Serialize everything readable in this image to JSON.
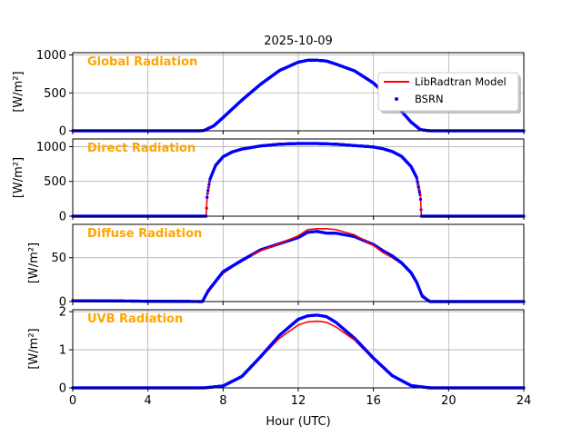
{
  "figure": {
    "title": "2025-10-09",
    "xlabel": "Hour (UTC)"
  },
  "colors": {
    "model": "#ff0000",
    "bsrn": "#0000ff",
    "panel_title": "#ffa500",
    "grid": "#b0b0b0"
  },
  "legend": {
    "location": "upper-right of first panel",
    "entries": [
      {
        "label": "LibRadtran Model",
        "style": "line",
        "color": "#ff0000"
      },
      {
        "label": "BSRN",
        "style": "dot",
        "color": "#0000ff"
      }
    ]
  },
  "chart_data": [
    {
      "type": "line",
      "title": "Global Radiation",
      "ylabel": "[W/m²]",
      "xlim": [
        0,
        24
      ],
      "ylim": [
        0,
        1030
      ],
      "xticks": [
        0,
        4,
        8,
        12,
        16,
        20,
        24
      ],
      "yticks": [
        0,
        500,
        1000
      ],
      "grid": true,
      "x": [
        0,
        6.8,
        7.0,
        7.5,
        8,
        9,
        10,
        11,
        12,
        12.5,
        13,
        13.5,
        14,
        15,
        16,
        17,
        17.5,
        18,
        18.5,
        19,
        24
      ],
      "series": [
        {
          "name": "LibRadtran Model",
          "values": [
            0,
            0,
            5,
            60,
            170,
            400,
            610,
            790,
            900,
            925,
            930,
            920,
            880,
            790,
            630,
            400,
            260,
            120,
            15,
            0,
            0
          ]
        },
        {
          "name": "BSRN",
          "values": [
            0,
            0,
            6,
            65,
            175,
            405,
            615,
            795,
            905,
            930,
            930,
            920,
            880,
            790,
            630,
            400,
            255,
            115,
            15,
            0,
            0
          ]
        }
      ]
    },
    {
      "type": "line",
      "title": "Direct Radiation",
      "ylabel": "[W/m²]",
      "xlim": [
        0,
        24
      ],
      "ylim": [
        0,
        1110
      ],
      "xticks": [
        0,
        4,
        8,
        12,
        16,
        20,
        24
      ],
      "yticks": [
        0,
        500,
        1000
      ],
      "grid": true,
      "x": [
        0,
        7.1,
        7.15,
        7.3,
        7.6,
        8,
        8.5,
        9,
        10,
        11,
        12,
        13,
        14,
        15,
        16,
        16.5,
        17,
        17.5,
        18,
        18.3,
        18.5,
        18.55,
        24
      ],
      "series": [
        {
          "name": "LibRadtran Model",
          "values": [
            0,
            0,
            280,
            520,
            720,
            850,
            920,
            960,
            1005,
            1030,
            1040,
            1040,
            1030,
            1010,
            990,
            965,
            930,
            860,
            720,
            560,
            300,
            0,
            0
          ]
        },
        {
          "name": "BSRN",
          "values": [
            0,
            0,
            290,
            530,
            730,
            855,
            925,
            965,
            1010,
            1035,
            1045,
            1045,
            1035,
            1015,
            995,
            970,
            930,
            860,
            715,
            555,
            280,
            0,
            0
          ]
        }
      ]
    },
    {
      "type": "line",
      "title": "Diffuse Radiation",
      "ylabel": "[W/m²]",
      "xlim": [
        0,
        24
      ],
      "ylim": [
        0,
        88
      ],
      "xticks": [
        0,
        4,
        8,
        12,
        16,
        20,
        24
      ],
      "yticks": [
        0,
        50
      ],
      "grid": true,
      "x": [
        0,
        6.9,
        7.2,
        7.6,
        8,
        9,
        10,
        11,
        12,
        12.5,
        13,
        13.5,
        14,
        15,
        16,
        16.5,
        17,
        17.5,
        18,
        18.3,
        18.6,
        19,
        24
      ],
      "series": [
        {
          "name": "LibRadtran Model",
          "values": [
            0,
            0,
            10,
            22,
            32,
            47,
            58,
            66,
            75,
            82,
            83,
            83,
            82,
            76,
            64,
            56,
            50,
            43,
            32,
            22,
            8,
            0,
            0
          ]
        },
        {
          "name": "BSRN",
          "values": [
            1,
            0,
            12,
            23,
            34,
            47,
            59,
            66,
            73,
            79,
            80,
            78,
            78,
            74,
            65,
            58,
            52,
            44,
            33,
            22,
            6,
            0,
            0
          ]
        }
      ]
    },
    {
      "type": "line",
      "title": "UVB Radiation",
      "ylabel": "[W/m²]",
      "xlim": [
        0,
        24
      ],
      "ylim": [
        0,
        2.05
      ],
      "xticks": [
        0,
        4,
        8,
        12,
        16,
        20,
        24
      ],
      "yticks": [
        0,
        1,
        2
      ],
      "grid": true,
      "x": [
        0,
        7,
        8,
        9,
        10,
        11,
        12,
        12.5,
        13,
        13.5,
        14,
        15,
        16,
        17,
        18,
        19,
        24
      ],
      "series": [
        {
          "name": "LibRadtran Model",
          "values": [
            0,
            0,
            0.05,
            0.3,
            0.8,
            1.3,
            1.65,
            1.73,
            1.75,
            1.72,
            1.6,
            1.25,
            0.75,
            0.3,
            0.06,
            0,
            0
          ]
        },
        {
          "name": "BSRN",
          "values": [
            0,
            0,
            0.05,
            0.3,
            0.82,
            1.38,
            1.8,
            1.89,
            1.91,
            1.87,
            1.72,
            1.3,
            0.78,
            0.32,
            0.06,
            0,
            0
          ]
        }
      ]
    }
  ]
}
